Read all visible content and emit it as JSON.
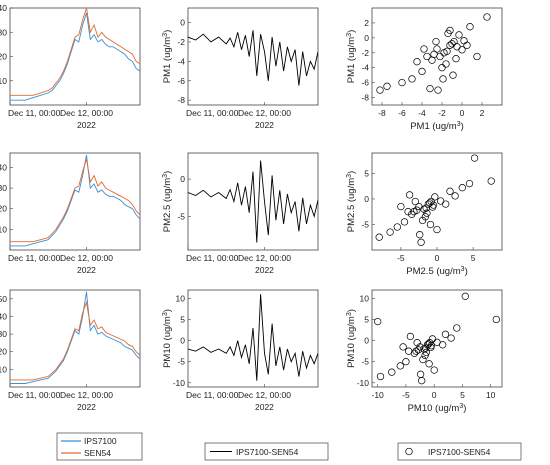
{
  "colors": {
    "series1": "#3a8fd6",
    "series2": "#e2692f",
    "difference": "#000000",
    "scatter": "#000000",
    "frame": "#444444"
  },
  "time_ticks": [
    "Dec 11, 00:00",
    "Dec 12, 00:00"
  ],
  "year_label": "2022",
  "legends": {
    "timeseries": [
      "IPS7100",
      "SEN54"
    ],
    "difference": "IPS7100-SEN54",
    "scatter": "IPS7100-SEN54"
  },
  "chart_data": [
    {
      "type": "line",
      "row": 0,
      "col": 0,
      "ylabel": "PM1 (ug/m3)",
      "xlim": [
        0,
        1.7
      ],
      "ylim": [
        0,
        40
      ],
      "yticks": [
        10,
        20,
        30,
        40
      ],
      "series": [
        {
          "name": "IPS7100",
          "x": [
            0,
            0.1,
            0.2,
            0.3,
            0.4,
            0.5,
            0.55,
            0.6,
            0.65,
            0.7,
            0.75,
            0.8,
            0.85,
            0.9,
            0.95,
            1.0,
            1.05,
            1.1,
            1.15,
            1.2,
            1.25,
            1.3,
            1.35,
            1.4,
            1.45,
            1.5,
            1.55,
            1.6,
            1.65,
            1.7
          ],
          "values": [
            2,
            2,
            2,
            3,
            4,
            5,
            6,
            8,
            10,
            13,
            17,
            22,
            27,
            26,
            33,
            38,
            27,
            29,
            26,
            27,
            25,
            24,
            24,
            23,
            22,
            21,
            19,
            18,
            15,
            14
          ]
        },
        {
          "name": "SEN54",
          "x": [
            0,
            0.1,
            0.2,
            0.3,
            0.4,
            0.5,
            0.55,
            0.6,
            0.65,
            0.7,
            0.75,
            0.8,
            0.85,
            0.9,
            0.95,
            1.0,
            1.05,
            1.1,
            1.15,
            1.2,
            1.25,
            1.3,
            1.35,
            1.4,
            1.45,
            1.5,
            1.55,
            1.6,
            1.65,
            1.7
          ],
          "values": [
            4,
            4,
            4,
            4,
            5,
            6,
            7,
            9,
            11,
            14,
            18,
            23,
            28,
            29,
            35,
            40,
            30,
            33,
            28,
            30,
            28,
            27,
            26,
            25,
            24,
            23,
            22,
            21,
            18,
            17
          ]
        }
      ]
    },
    {
      "type": "line",
      "row": 0,
      "col": 1,
      "ylabel": "PM1 (ug/m3)",
      "xlim": [
        0,
        1.7
      ],
      "ylim": [
        -8.5,
        1.5
      ],
      "yticks": [
        -8,
        -6,
        -4,
        -2,
        0
      ],
      "series": [
        {
          "name": "IPS7100-SEN54",
          "x": [
            0,
            0.1,
            0.2,
            0.3,
            0.4,
            0.5,
            0.55,
            0.6,
            0.65,
            0.7,
            0.75,
            0.8,
            0.85,
            0.9,
            0.95,
            1.0,
            1.05,
            1.1,
            1.15,
            1.2,
            1.25,
            1.3,
            1.35,
            1.4,
            1.45,
            1.5,
            1.55,
            1.6,
            1.65,
            1.7
          ],
          "values": [
            -1.5,
            -1.8,
            -1.2,
            -2.0,
            -1.5,
            -2.2,
            -1.6,
            -2.5,
            -1.0,
            -2.8,
            -1.3,
            -3.5,
            -0.8,
            -5.5,
            -1.2,
            -3.0,
            -6.0,
            -1.5,
            -4.5,
            -2.0,
            -5.0,
            -2.5,
            -4.0,
            -2.8,
            -6.5,
            -3.0,
            -5.5,
            -4.0,
            -4.8,
            -3.0
          ]
        }
      ]
    },
    {
      "type": "scatter",
      "row": 0,
      "col": 2,
      "xlabel": "PM1 (ug/m3)",
      "ylabel": "PM1 (ug/m3)",
      "xlim": [
        -9,
        4
      ],
      "ylim": [
        -9,
        4
      ],
      "xticks": [
        -8,
        -6,
        -4,
        -2,
        0,
        2
      ],
      "yticks": [
        -8,
        -6,
        -4,
        -2,
        0,
        2
      ],
      "series": [
        {
          "name": "IPS7100-SEN54",
          "x": [
            -2.5,
            -1.8,
            -1.2,
            -0.8,
            -2.2,
            -1.5,
            -0.5,
            0.2,
            -3.0,
            -2.8,
            -1.0,
            -0.3,
            0.5,
            -1.6,
            -2.0,
            -4.0,
            -3.5,
            -5.0,
            -6.0,
            -7.5,
            -8.2,
            -1.2,
            0.8,
            1.5,
            2.5,
            -0.9,
            -2.6,
            -3.8,
            -4.5,
            -1.4,
            -0.6,
            0.0,
            -1.9,
            -2.4,
            -3.2
          ],
          "y": [
            -1.5,
            -2.0,
            -1.0,
            -0.5,
            -2.5,
            -1.8,
            -1.2,
            -0.4,
            -3.0,
            -2.2,
            -0.8,
            0.4,
            -1.0,
            -3.5,
            -4.0,
            -4.5,
            -2.5,
            -5.5,
            -6.0,
            -6.5,
            -7.0,
            1.0,
            1.5,
            -2.5,
            2.8,
            -5.0,
            -0.5,
            -1.5,
            -3.2,
            0.6,
            -2.8,
            -1.6,
            -5.5,
            -7.0,
            -6.8
          ]
        }
      ]
    },
    {
      "type": "line",
      "row": 1,
      "col": 0,
      "ylabel": "PM2.5 (ug/m3)",
      "xlim": [
        0,
        1.7
      ],
      "ylim": [
        0,
        47
      ],
      "yticks": [
        10,
        20,
        30,
        40
      ],
      "series": [
        {
          "name": "IPS7100",
          "x": [
            0,
            0.1,
            0.2,
            0.3,
            0.4,
            0.5,
            0.55,
            0.6,
            0.65,
            0.7,
            0.75,
            0.8,
            0.85,
            0.9,
            0.95,
            1.0,
            1.05,
            1.1,
            1.15,
            1.2,
            1.25,
            1.3,
            1.35,
            1.4,
            1.45,
            1.5,
            1.55,
            1.6,
            1.65,
            1.7
          ],
          "values": [
            2,
            2,
            2,
            3,
            4,
            5,
            7,
            9,
            12,
            15,
            19,
            24,
            29,
            28,
            36,
            46,
            30,
            32,
            28,
            29,
            27,
            26,
            26,
            25,
            24,
            22,
            21,
            20,
            17,
            15
          ]
        },
        {
          "name": "SEN54",
          "x": [
            0,
            0.1,
            0.2,
            0.3,
            0.4,
            0.5,
            0.55,
            0.6,
            0.65,
            0.7,
            0.75,
            0.8,
            0.85,
            0.9,
            0.95,
            1.0,
            1.05,
            1.1,
            1.15,
            1.2,
            1.25,
            1.3,
            1.35,
            1.4,
            1.45,
            1.5,
            1.55,
            1.6,
            1.65,
            1.7
          ],
          "values": [
            4,
            4,
            4,
            4,
            5,
            6,
            8,
            10,
            13,
            16,
            20,
            25,
            30,
            31,
            38,
            44,
            33,
            36,
            31,
            33,
            30,
            29,
            28,
            27,
            26,
            25,
            24,
            22,
            19,
            17
          ]
        }
      ]
    },
    {
      "type": "line",
      "row": 1,
      "col": 1,
      "ylabel": "PM2.5 (ug/m3)",
      "xlim": [
        0,
        1.7
      ],
      "ylim": [
        -9.5,
        3.5
      ],
      "yticks": [
        -5,
        0
      ],
      "series": [
        {
          "name": "IPS7100-SEN54",
          "x": [
            0,
            0.1,
            0.2,
            0.3,
            0.4,
            0.5,
            0.55,
            0.6,
            0.65,
            0.7,
            0.75,
            0.8,
            0.85,
            0.9,
            0.95,
            1.0,
            1.05,
            1.1,
            1.15,
            1.2,
            1.25,
            1.3,
            1.35,
            1.4,
            1.45,
            1.5,
            1.55,
            1.6,
            1.65,
            1.7
          ],
          "values": [
            -1.8,
            -2.2,
            -1.5,
            -2.4,
            -1.8,
            -2.6,
            -1.4,
            -3.0,
            -0.5,
            -3.5,
            -1.0,
            -4.5,
            1.0,
            -8.5,
            2.5,
            -3.0,
            -7.5,
            0.5,
            -5.5,
            -1.5,
            -6.0,
            -2.0,
            -4.5,
            -3.0,
            -7.0,
            -2.5,
            -6.0,
            -3.5,
            -5.0,
            -2.8
          ]
        }
      ]
    },
    {
      "type": "scatter",
      "row": 1,
      "col": 2,
      "xlabel": "PM2.5 (ug/m3)",
      "ylabel": "PM2.5 (ug/m3)",
      "xlim": [
        -9,
        9
      ],
      "ylim": [
        -10,
        9
      ],
      "xticks": [
        -5,
        0,
        5
      ],
      "yticks": [
        -5,
        0,
        5
      ],
      "series": [
        {
          "name": "IPS7100-SEN54",
          "x": [
            -2.5,
            -1.8,
            -1.2,
            -0.8,
            -3.2,
            -1.5,
            -0.5,
            0.5,
            -3.5,
            -2.8,
            -1.0,
            -0.3,
            1.2,
            -1.6,
            -2.0,
            -4.5,
            -4.0,
            -5.5,
            -6.5,
            -8.0,
            -2.2,
            1.8,
            3.5,
            4.5,
            -0.9,
            -3.0,
            -5.0,
            2.5,
            -1.4,
            -0.6,
            0.0,
            -2.4,
            -3.8,
            7.5,
            5.2
          ],
          "y": [
            -1.5,
            -2.0,
            -1.0,
            -0.5,
            -2.5,
            -1.8,
            -1.2,
            -0.4,
            -3.0,
            -2.2,
            -0.8,
            0.4,
            -1.0,
            -3.5,
            -4.2,
            -4.5,
            -2.5,
            -5.5,
            -6.5,
            -7.5,
            -8.5,
            1.5,
            2.2,
            3.0,
            -5.0,
            -0.5,
            -1.5,
            0.6,
            -2.8,
            -1.6,
            -6.0,
            -7.0,
            0.8,
            3.5,
            8.0
          ]
        }
      ]
    },
    {
      "type": "line",
      "row": 2,
      "col": 0,
      "ylabel": "PM10 (ug/m3)",
      "xlim": [
        0,
        1.7
      ],
      "ylim": [
        0,
        55
      ],
      "yticks": [
        10,
        20,
        30,
        40,
        50
      ],
      "series": [
        {
          "name": "IPS7100",
          "x": [
            0,
            0.1,
            0.2,
            0.3,
            0.4,
            0.5,
            0.55,
            0.6,
            0.65,
            0.7,
            0.75,
            0.8,
            0.85,
            0.9,
            0.95,
            1.0,
            1.05,
            1.1,
            1.15,
            1.2,
            1.25,
            1.3,
            1.35,
            1.4,
            1.45,
            1.5,
            1.55,
            1.6,
            1.65,
            1.7
          ],
          "values": [
            2,
            2,
            2,
            3,
            4,
            5,
            7,
            9,
            12,
            15,
            20,
            26,
            32,
            30,
            40,
            54,
            32,
            35,
            30,
            31,
            29,
            28,
            27,
            26,
            25,
            23,
            22,
            21,
            18,
            16
          ]
        },
        {
          "name": "SEN54",
          "x": [
            0,
            0.1,
            0.2,
            0.3,
            0.4,
            0.5,
            0.55,
            0.6,
            0.65,
            0.7,
            0.75,
            0.8,
            0.85,
            0.9,
            0.95,
            1.0,
            1.05,
            1.1,
            1.15,
            1.2,
            1.25,
            1.3,
            1.35,
            1.4,
            1.45,
            1.5,
            1.55,
            1.6,
            1.65,
            1.7
          ],
          "values": [
            4,
            4,
            4,
            4,
            5,
            6,
            8,
            10,
            13,
            16,
            21,
            27,
            33,
            32,
            42,
            48,
            35,
            38,
            33,
            34,
            31,
            30,
            29,
            28,
            27,
            26,
            24,
            23,
            20,
            18
          ]
        }
      ]
    },
    {
      "type": "line",
      "row": 2,
      "col": 1,
      "ylabel": "PM10 (ug/m3)",
      "xlim": [
        0,
        1.7
      ],
      "ylim": [
        -11,
        12
      ],
      "yticks": [
        -10,
        -5,
        0,
        5,
        10
      ],
      "series": [
        {
          "name": "IPS7100-SEN54",
          "x": [
            0,
            0.1,
            0.2,
            0.3,
            0.4,
            0.5,
            0.55,
            0.6,
            0.65,
            0.7,
            0.75,
            0.8,
            0.85,
            0.9,
            0.95,
            1.0,
            1.05,
            1.1,
            1.15,
            1.2,
            1.25,
            1.3,
            1.35,
            1.4,
            1.45,
            1.5,
            1.55,
            1.6,
            1.65,
            1.7
          ],
          "values": [
            -2.0,
            -2.5,
            -1.5,
            -2.8,
            -2.0,
            -3.0,
            -1.5,
            -3.5,
            0.0,
            -4.0,
            -1.0,
            -5.5,
            3.0,
            -9.5,
            11.0,
            -3.0,
            -8.0,
            4.0,
            -6.0,
            -1.5,
            -7.0,
            -2.0,
            -5.0,
            -3.0,
            -8.5,
            -2.5,
            -6.5,
            -3.5,
            -5.5,
            -3.0
          ]
        }
      ]
    },
    {
      "type": "scatter",
      "row": 2,
      "col": 2,
      "xlabel": "PM10 (ug/m3)",
      "ylabel": "PM10 (ug/m3)",
      "xlim": [
        -11,
        12
      ],
      "ylim": [
        -11,
        12
      ],
      "xticks": [
        -10,
        -5,
        0,
        5,
        10
      ],
      "yticks": [
        -10,
        -5,
        0,
        5,
        10
      ],
      "series": [
        {
          "name": "IPS7100-SEN54",
          "x": [
            -2.5,
            -1.8,
            -1.2,
            -0.8,
            -3.2,
            -1.5,
            -0.5,
            0.5,
            -3.5,
            -2.8,
            -1.0,
            -0.3,
            1.5,
            -1.6,
            -2.0,
            -5.0,
            -4.5,
            -6.0,
            -7.5,
            -9.5,
            -2.2,
            2.0,
            4.0,
            5.5,
            -0.9,
            -3.0,
            -5.5,
            3.0,
            -1.4,
            -0.6,
            0.0,
            -2.4,
            -4.2,
            11.0,
            -10.0
          ],
          "y": [
            -1.5,
            -2.0,
            -1.0,
            -0.5,
            -2.5,
            -1.8,
            -1.2,
            -0.4,
            -3.0,
            -2.2,
            -0.8,
            0.4,
            -1.0,
            -3.5,
            -4.5,
            -5.0,
            -2.5,
            -6.0,
            -7.5,
            -8.5,
            -9.5,
            1.5,
            3.0,
            10.5,
            -5.5,
            -0.5,
            -1.5,
            0.6,
            -2.8,
            -1.6,
            -7.0,
            -8.0,
            1.0,
            5.0,
            4.5
          ]
        }
      ]
    }
  ]
}
